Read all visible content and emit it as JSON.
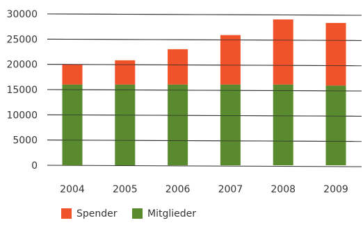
{
  "chart_data": {
    "type": "bar",
    "stacked": true,
    "categories": [
      "2004",
      "2005",
      "2006",
      "2007",
      "2008",
      "2009"
    ],
    "series": [
      {
        "name": "Mitglieder",
        "color": "#5a8a2e",
        "values": [
          16000,
          16000,
          16000,
          16000,
          16000,
          15800
        ]
      },
      {
        "name": "Spender",
        "color": "#f0532a",
        "values": [
          4000,
          4800,
          7000,
          9800,
          12900,
          12400
        ]
      }
    ],
    "y_ticks": [
      "0",
      "5000",
      "10000",
      "15000",
      "20000",
      "25000",
      "30000"
    ],
    "ylim": [
      0,
      30000
    ],
    "grid": true,
    "legend": [
      {
        "label": "Spender",
        "color": "#f0532a"
      },
      {
        "label": "Mitglieder",
        "color": "#5a8a2e"
      }
    ],
    "legend_position": "bottom-left",
    "title": "",
    "xlabel": "",
    "ylabel": ""
  }
}
